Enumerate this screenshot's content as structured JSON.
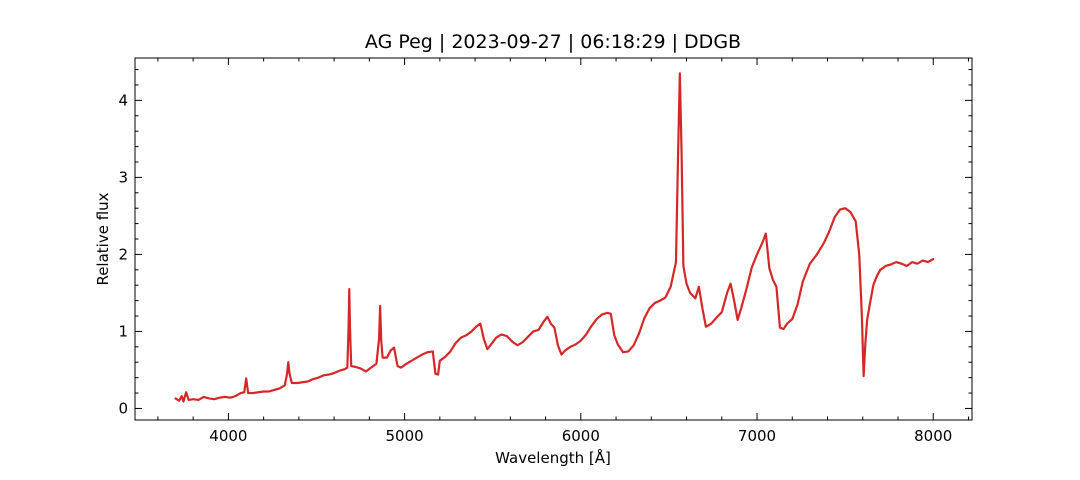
{
  "chart_data": {
    "type": "line",
    "title": "AG Peg | 2023-09-27 | 06:18:29 | DDGB",
    "xlabel": "Wavelength [Å]",
    "ylabel": "Relative flux",
    "xlim": [
      3470,
      8220
    ],
    "ylim": [
      -0.15,
      4.55
    ],
    "x_ticks": [
      4000,
      5000,
      6000,
      7000,
      8000
    ],
    "x_tick_labels": [
      "4000",
      "5000",
      "6000",
      "7000",
      "8000"
    ],
    "y_ticks": [
      0,
      1,
      2,
      3,
      4
    ],
    "y_tick_labels": [
      "0",
      "1",
      "2",
      "3",
      "4"
    ],
    "grid": false,
    "series": [
      {
        "color": "#d62728",
        "points": [
          [
            3700,
            0.13
          ],
          [
            3720,
            0.1
          ],
          [
            3735,
            0.16
          ],
          [
            3745,
            0.09
          ],
          [
            3760,
            0.21
          ],
          [
            3775,
            0.11
          ],
          [
            3800,
            0.12
          ],
          [
            3830,
            0.11
          ],
          [
            3860,
            0.15
          ],
          [
            3890,
            0.13
          ],
          [
            3920,
            0.12
          ],
          [
            3950,
            0.14
          ],
          [
            3980,
            0.15
          ],
          [
            4010,
            0.14
          ],
          [
            4040,
            0.16
          ],
          [
            4070,
            0.2
          ],
          [
            4090,
            0.21
          ],
          [
            4101,
            0.39
          ],
          [
            4112,
            0.2
          ],
          [
            4140,
            0.2
          ],
          [
            4170,
            0.21
          ],
          [
            4200,
            0.22
          ],
          [
            4230,
            0.22
          ],
          [
            4260,
            0.24
          ],
          [
            4290,
            0.26
          ],
          [
            4320,
            0.3
          ],
          [
            4333,
            0.45
          ],
          [
            4340,
            0.6
          ],
          [
            4347,
            0.45
          ],
          [
            4360,
            0.33
          ],
          [
            4390,
            0.33
          ],
          [
            4420,
            0.34
          ],
          [
            4450,
            0.35
          ],
          [
            4480,
            0.38
          ],
          [
            4510,
            0.4
          ],
          [
            4540,
            0.43
          ],
          [
            4570,
            0.44
          ],
          [
            4600,
            0.46
          ],
          [
            4630,
            0.49
          ],
          [
            4660,
            0.51
          ],
          [
            4675,
            0.53
          ],
          [
            4682,
            1.05
          ],
          [
            4686,
            1.55
          ],
          [
            4690,
            1.05
          ],
          [
            4697,
            0.55
          ],
          [
            4720,
            0.54
          ],
          [
            4750,
            0.52
          ],
          [
            4780,
            0.48
          ],
          [
            4810,
            0.53
          ],
          [
            4840,
            0.58
          ],
          [
            4855,
            0.9
          ],
          [
            4861,
            1.33
          ],
          [
            4867,
            0.9
          ],
          [
            4875,
            0.66
          ],
          [
            4900,
            0.66
          ],
          [
            4920,
            0.75
          ],
          [
            4940,
            0.79
          ],
          [
            4960,
            0.55
          ],
          [
            4980,
            0.53
          ],
          [
            5010,
            0.58
          ],
          [
            5040,
            0.62
          ],
          [
            5070,
            0.66
          ],
          [
            5100,
            0.7
          ],
          [
            5130,
            0.73
          ],
          [
            5160,
            0.74
          ],
          [
            5175,
            0.45
          ],
          [
            5190,
            0.44
          ],
          [
            5200,
            0.62
          ],
          [
            5230,
            0.67
          ],
          [
            5260,
            0.74
          ],
          [
            5290,
            0.85
          ],
          [
            5320,
            0.92
          ],
          [
            5350,
            0.95
          ],
          [
            5380,
            1.0
          ],
          [
            5410,
            1.07
          ],
          [
            5430,
            1.1
          ],
          [
            5450,
            0.9
          ],
          [
            5470,
            0.77
          ],
          [
            5490,
            0.83
          ],
          [
            5520,
            0.92
          ],
          [
            5550,
            0.96
          ],
          [
            5580,
            0.94
          ],
          [
            5610,
            0.87
          ],
          [
            5640,
            0.82
          ],
          [
            5670,
            0.86
          ],
          [
            5700,
            0.93
          ],
          [
            5730,
            1.0
          ],
          [
            5760,
            1.02
          ],
          [
            5790,
            1.13
          ],
          [
            5810,
            1.19
          ],
          [
            5830,
            1.1
          ],
          [
            5850,
            1.05
          ],
          [
            5870,
            0.82
          ],
          [
            5890,
            0.7
          ],
          [
            5910,
            0.75
          ],
          [
            5940,
            0.8
          ],
          [
            5970,
            0.83
          ],
          [
            6000,
            0.88
          ],
          [
            6030,
            0.96
          ],
          [
            6060,
            1.07
          ],
          [
            6090,
            1.16
          ],
          [
            6120,
            1.22
          ],
          [
            6150,
            1.24
          ],
          [
            6170,
            1.23
          ],
          [
            6190,
            0.95
          ],
          [
            6210,
            0.83
          ],
          [
            6240,
            0.73
          ],
          [
            6270,
            0.74
          ],
          [
            6300,
            0.82
          ],
          [
            6330,
            0.97
          ],
          [
            6360,
            1.17
          ],
          [
            6390,
            1.3
          ],
          [
            6420,
            1.37
          ],
          [
            6450,
            1.4
          ],
          [
            6480,
            1.44
          ],
          [
            6510,
            1.58
          ],
          [
            6540,
            1.9
          ],
          [
            6552,
            3.3
          ],
          [
            6562,
            4.35
          ],
          [
            6572,
            3.3
          ],
          [
            6582,
            1.85
          ],
          [
            6600,
            1.62
          ],
          [
            6620,
            1.5
          ],
          [
            6650,
            1.43
          ],
          [
            6670,
            1.58
          ],
          [
            6690,
            1.3
          ],
          [
            6710,
            1.06
          ],
          [
            6740,
            1.1
          ],
          [
            6770,
            1.18
          ],
          [
            6800,
            1.25
          ],
          [
            6830,
            1.5
          ],
          [
            6850,
            1.62
          ],
          [
            6870,
            1.4
          ],
          [
            6890,
            1.15
          ],
          [
            6910,
            1.3
          ],
          [
            6940,
            1.55
          ],
          [
            6970,
            1.83
          ],
          [
            7000,
            2.0
          ],
          [
            7030,
            2.15
          ],
          [
            7050,
            2.27
          ],
          [
            7070,
            1.82
          ],
          [
            7090,
            1.67
          ],
          [
            7110,
            1.58
          ],
          [
            7130,
            1.05
          ],
          [
            7150,
            1.03
          ],
          [
            7170,
            1.1
          ],
          [
            7200,
            1.16
          ],
          [
            7230,
            1.35
          ],
          [
            7260,
            1.65
          ],
          [
            7300,
            1.88
          ],
          [
            7340,
            2.0
          ],
          [
            7380,
            2.15
          ],
          [
            7410,
            2.3
          ],
          [
            7440,
            2.48
          ],
          [
            7470,
            2.58
          ],
          [
            7500,
            2.6
          ],
          [
            7530,
            2.55
          ],
          [
            7560,
            2.43
          ],
          [
            7580,
            2.0
          ],
          [
            7595,
            1.2
          ],
          [
            7605,
            0.42
          ],
          [
            7615,
            0.85
          ],
          [
            7625,
            1.15
          ],
          [
            7640,
            1.35
          ],
          [
            7660,
            1.6
          ],
          [
            7680,
            1.72
          ],
          [
            7700,
            1.8
          ],
          [
            7730,
            1.85
          ],
          [
            7760,
            1.87
          ],
          [
            7790,
            1.9
          ],
          [
            7820,
            1.88
          ],
          [
            7850,
            1.85
          ],
          [
            7880,
            1.9
          ],
          [
            7910,
            1.88
          ],
          [
            7940,
            1.92
          ],
          [
            7970,
            1.9
          ],
          [
            8000,
            1.94
          ]
        ]
      }
    ]
  }
}
